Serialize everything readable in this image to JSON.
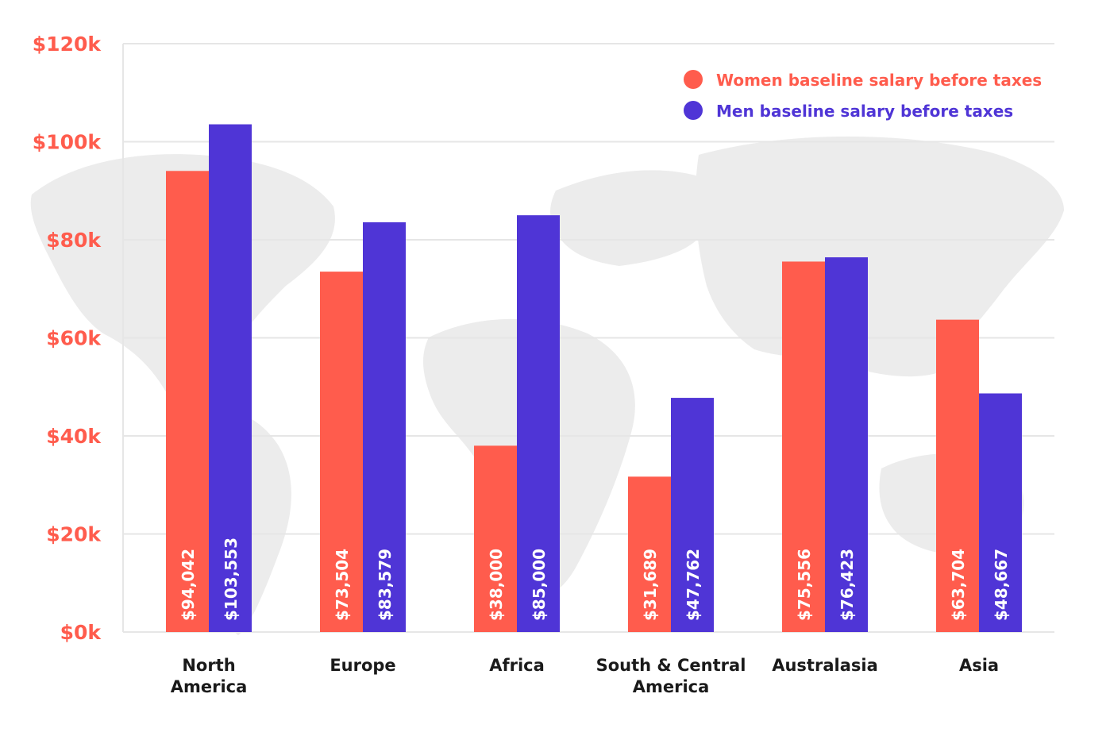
{
  "colors": {
    "women": "#FF5C4D",
    "men": "#4F35D6",
    "axis_text": "#FF5C4D",
    "category_text": "#1a1a1a",
    "bar_label": "#ffffff",
    "grid": "#e6e6e6",
    "map": "#ececec"
  },
  "chart_data": {
    "type": "bar",
    "categories": [
      "North America",
      "Europe",
      "Africa",
      "South & Central America",
      "Australasia",
      "Asia"
    ],
    "category_lines": [
      [
        "North",
        "America"
      ],
      [
        "Europe"
      ],
      [
        "Africa"
      ],
      [
        "South & Central",
        "America"
      ],
      [
        "Australasia"
      ],
      [
        "Asia"
      ]
    ],
    "series": [
      {
        "name": "Women baseline salary before taxes",
        "values": [
          94042,
          73504,
          38000,
          31689,
          75556,
          63704
        ],
        "labels": [
          "$94,042",
          "$73,504",
          "$38,000",
          "$31,689",
          "$75,556",
          "$63,704"
        ]
      },
      {
        "name": "Men baseline salary before taxes",
        "values": [
          103553,
          83579,
          85000,
          47762,
          76423,
          48667
        ],
        "labels": [
          "$103,553",
          "$83,579",
          "$85,000",
          "$47,762",
          "$76,423",
          "$48,667"
        ]
      }
    ],
    "ylim": [
      0,
      120000
    ],
    "yticks": [
      0,
      20000,
      40000,
      60000,
      80000,
      100000,
      120000
    ],
    "ytick_labels": [
      "$0k",
      "$20k",
      "$40k",
      "$60k",
      "$80k",
      "$100k",
      "$120k"
    ],
    "grid": true,
    "legend_position": "top-right",
    "background": "world-map"
  }
}
